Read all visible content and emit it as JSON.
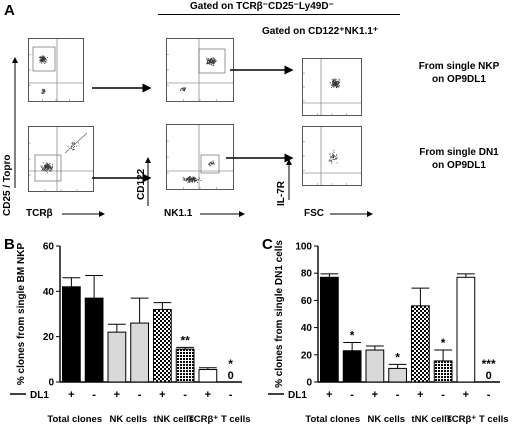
{
  "panel_a": {
    "letter": "A",
    "gate_titles": {
      "top": "Gated on TCRβ⁻CD25⁻Ly49D⁻",
      "secondary": "Gated on CD122⁺NK1.1⁺"
    },
    "axis_labels": {
      "col1_y": "CD25 / Topro",
      "col1_x": "TCRβ",
      "col2_y": "CD122",
      "col2_x": "NK1.1",
      "col3_y": "IL-7R",
      "col3_x": "FSC"
    },
    "row_labels": [
      {
        "line1": "From single NKP",
        "line2": "on OP9DL1"
      },
      {
        "line1": "From single DN1",
        "line2": "on OP9DL1"
      }
    ]
  },
  "panel_b": {
    "letter": "B",
    "chart_data": {
      "type": "bar",
      "ylabel": "% clones from single BM NKP",
      "ylim": [
        0,
        60
      ],
      "yticks": [
        "0",
        "20",
        "40",
        "60"
      ],
      "dl1_row_label": "DL1",
      "dl1_signs": [
        "+",
        "-",
        "+",
        "-",
        "+",
        "-",
        "+",
        "-"
      ],
      "groups": [
        "Total clones",
        "NK cells",
        "tNK cells",
        "TCRβ⁺ T cells"
      ],
      "values": [
        42,
        37,
        22,
        26,
        32,
        14.5,
        5.5,
        0
      ],
      "errors": [
        4,
        10,
        3.5,
        11,
        3,
        0.8,
        0.8,
        0
      ],
      "annotations": [
        "",
        "",
        "",
        "",
        "",
        "**",
        "",
        "*"
      ],
      "zero_label": "0",
      "group_styles": [
        "black",
        "light-gray",
        "checkered",
        "white"
      ]
    }
  },
  "panel_c": {
    "letter": "C",
    "chart_data": {
      "type": "bar",
      "ylabel": "% clones from single DN1 cells",
      "ylim": [
        0,
        100
      ],
      "yticks": [
        "0",
        "20",
        "40",
        "60",
        "80",
        "100"
      ],
      "dl1_row_label": "DL1",
      "dl1_signs": [
        "+",
        "-",
        "+",
        "-",
        "+",
        "-",
        "+",
        "-"
      ],
      "groups": [
        "Total clones",
        "NK cells",
        "tNK cells",
        "TCRβ⁺ T cells"
      ],
      "values": [
        77,
        23,
        23.5,
        10,
        56,
        15.5,
        77,
        0
      ],
      "errors": [
        2.5,
        6,
        3,
        3,
        13,
        8,
        2.5,
        0
      ],
      "annotations": [
        "",
        "*",
        "",
        "*",
        "",
        "*",
        "",
        "***"
      ],
      "zero_label": "0",
      "group_styles": [
        "black",
        "light-gray",
        "checkered",
        "white"
      ]
    }
  }
}
